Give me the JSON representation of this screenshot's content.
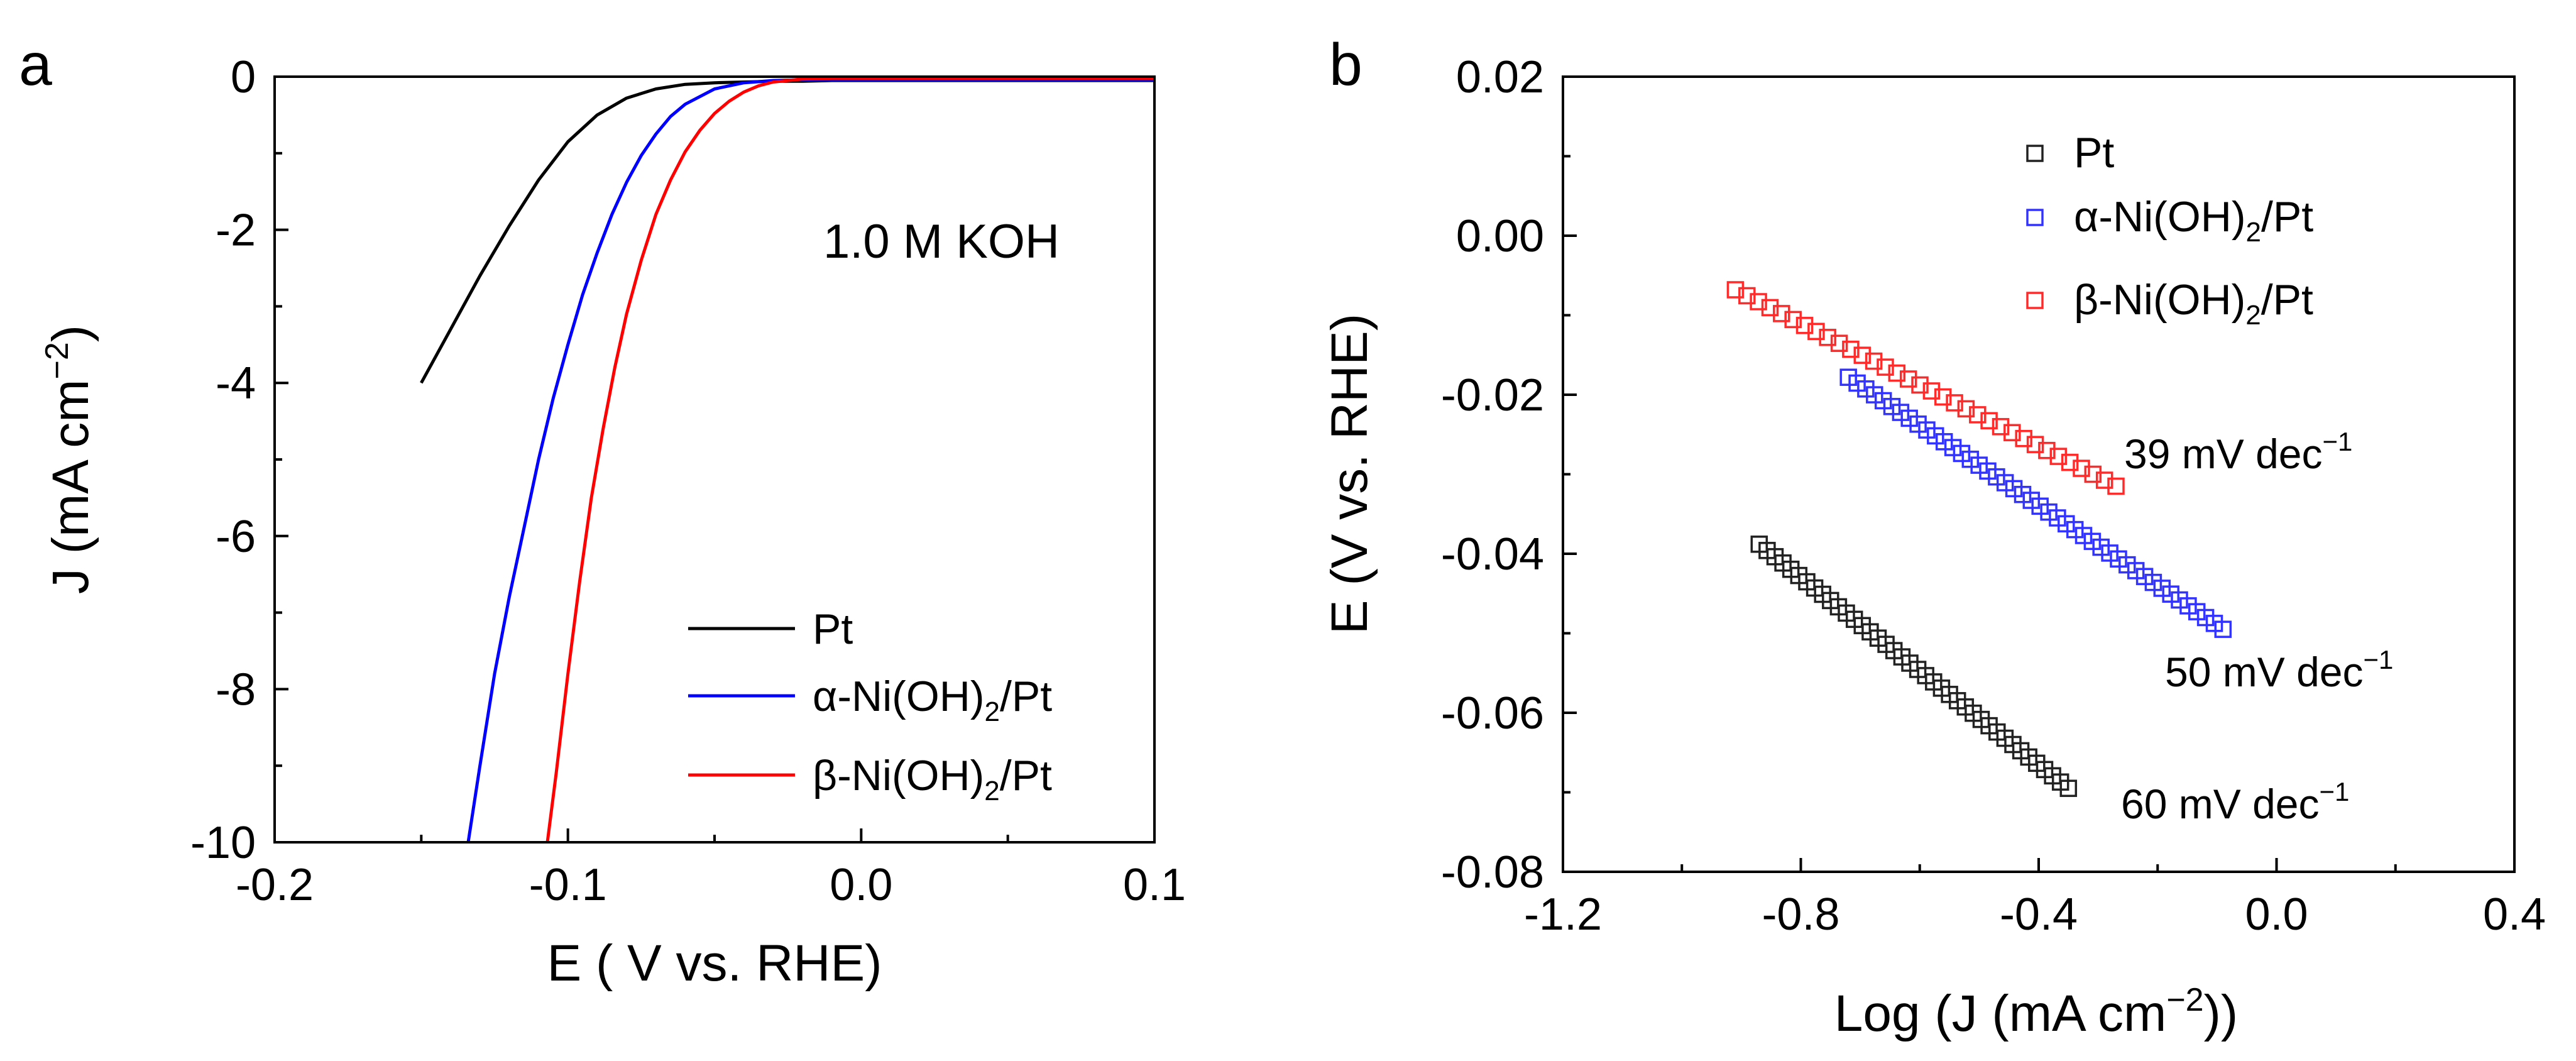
{
  "colors": {
    "Pt": "#000000",
    "alpha": "#0000ff",
    "beta": "#ff0000",
    "sq_black": "#222222",
    "sq_blue": "#3333ff",
    "sq_red": "#ff2a2a"
  },
  "chart_data": [
    {
      "type": "line",
      "panel_label": "a",
      "xlabel": "E ( V vs. RHE)",
      "ylabel": "J (mA cm",
      "ylabel_sup": "−2",
      "ylabel_close": ")",
      "xlim": [
        -0.2,
        0.1
      ],
      "ylim": [
        -10,
        0
      ],
      "xticks": [
        -0.2,
        -0.1,
        0.0,
        0.1
      ],
      "xtick_labels": [
        "-0.2",
        "-0.1",
        "0.0",
        "0.1"
      ],
      "yticks": [
        0,
        -2,
        -4,
        -6,
        -8,
        -10
      ],
      "ytick_labels": [
        "0",
        "-2",
        "-4",
        "-6",
        "-8",
        "-10"
      ],
      "annotation": "1.0 M KOH",
      "legend": [
        {
          "prefix": "Pt",
          "sub": "",
          "suffix": ""
        },
        {
          "prefix": "α-Ni(OH)",
          "sub": "2",
          "suffix": "/Pt"
        },
        {
          "prefix": "β-Ni(OH)",
          "sub": "2",
          "suffix": "/Pt"
        }
      ],
      "series": [
        {
          "name": "Pt",
          "x": [
            -0.15,
            -0.14,
            -0.13,
            -0.12,
            -0.11,
            -0.1,
            -0.09,
            -0.08,
            -0.07,
            -0.06,
            -0.05,
            -0.04,
            -0.03,
            -0.02,
            -0.01,
            0.0,
            0.02,
            0.04,
            0.06,
            0.08,
            0.1
          ],
          "y": [
            -4.0,
            -3.3,
            -2.6,
            -1.95,
            -1.35,
            -0.85,
            -0.5,
            -0.28,
            -0.16,
            -0.1,
            -0.08,
            -0.07,
            -0.06,
            -0.06,
            -0.05,
            -0.05,
            -0.05,
            -0.05,
            -0.05,
            -0.05,
            -0.05
          ]
        },
        {
          "name": "α-Ni(OH)2/Pt",
          "x": [
            -0.134,
            -0.13,
            -0.125,
            -0.12,
            -0.115,
            -0.11,
            -0.105,
            -0.1,
            -0.095,
            -0.09,
            -0.085,
            -0.08,
            -0.075,
            -0.07,
            -0.065,
            -0.06,
            -0.05,
            -0.04,
            -0.03,
            -0.02,
            -0.01,
            0.0,
            0.02,
            0.04,
            0.06,
            0.08,
            0.1
          ],
          "y": [
            -10.0,
            -9.0,
            -7.8,
            -6.8,
            -5.9,
            -5.0,
            -4.2,
            -3.5,
            -2.85,
            -2.3,
            -1.8,
            -1.38,
            -1.03,
            -0.75,
            -0.52,
            -0.36,
            -0.16,
            -0.08,
            -0.05,
            -0.04,
            -0.04,
            -0.04,
            -0.04,
            -0.04,
            -0.04,
            -0.04,
            -0.04
          ]
        },
        {
          "name": "β-Ni(OH)2/Pt",
          "x": [
            -0.107,
            -0.104,
            -0.1,
            -0.096,
            -0.092,
            -0.088,
            -0.084,
            -0.08,
            -0.075,
            -0.07,
            -0.065,
            -0.06,
            -0.055,
            -0.05,
            -0.045,
            -0.04,
            -0.035,
            -0.03,
            -0.02,
            -0.01,
            0.0,
            0.02,
            0.04,
            0.06,
            0.08,
            0.1
          ],
          "y": [
            -10.0,
            -9.1,
            -7.8,
            -6.6,
            -5.5,
            -4.6,
            -3.8,
            -3.1,
            -2.4,
            -1.8,
            -1.35,
            -0.98,
            -0.7,
            -0.48,
            -0.32,
            -0.2,
            -0.12,
            -0.07,
            -0.03,
            -0.02,
            -0.02,
            -0.02,
            -0.02,
            -0.02,
            -0.02,
            -0.02
          ]
        }
      ]
    },
    {
      "type": "scatter",
      "panel_label": "b",
      "xlabel": "Log (J (mA cm",
      "xlabel_sup": "−2",
      "xlabel_close": "))",
      "ylabel": "E (V vs. RHE)",
      "xlim": [
        -1.2,
        0.4
      ],
      "ylim": [
        -0.08,
        0.02
      ],
      "xticks": [
        -1.2,
        -0.8,
        -0.4,
        0.0,
        0.4
      ],
      "xtick_labels": [
        "-1.2",
        "-0.8",
        "-0.4",
        "0.0",
        "0.4"
      ],
      "yticks": [
        0.02,
        0.0,
        -0.02,
        -0.04,
        -0.06,
        -0.08
      ],
      "ytick_labels": [
        "0.02",
        "0.00",
        "-0.02",
        "-0.04",
        "-0.06",
        "-0.08"
      ],
      "legend": [
        {
          "prefix": "Pt",
          "sub": "",
          "suffix": ""
        },
        {
          "prefix": "α-Ni(OH)",
          "sub": "2",
          "suffix": "/Pt"
        },
        {
          "prefix": "β-Ni(OH)",
          "sub": "2",
          "suffix": "/Pt"
        }
      ],
      "slope_labels": [
        {
          "series": "β-Ni(OH)2/Pt",
          "text": "39 mV dec",
          "sup": "−1"
        },
        {
          "series": "α-Ni(OH)2/Pt",
          "text": "50 mV dec",
          "sup": "−1"
        },
        {
          "series": "Pt",
          "text": "60 mV dec",
          "sup": "−1"
        }
      ],
      "series": [
        {
          "name": "Pt",
          "x_start": -0.87,
          "x_end": -0.35,
          "y_start": -0.0388,
          "y_end": -0.0695,
          "n": 40
        },
        {
          "name": "α-Ni(OH)2/Pt",
          "x_start": -0.72,
          "x_end": -0.09,
          "y_start": -0.0178,
          "y_end": -0.0495,
          "n": 44
        },
        {
          "name": "β-Ni(OH)2/Pt",
          "x_start": -0.91,
          "x_end": -0.27,
          "y_start": -0.0068,
          "y_end": -0.0315,
          "n": 34
        }
      ]
    }
  ]
}
